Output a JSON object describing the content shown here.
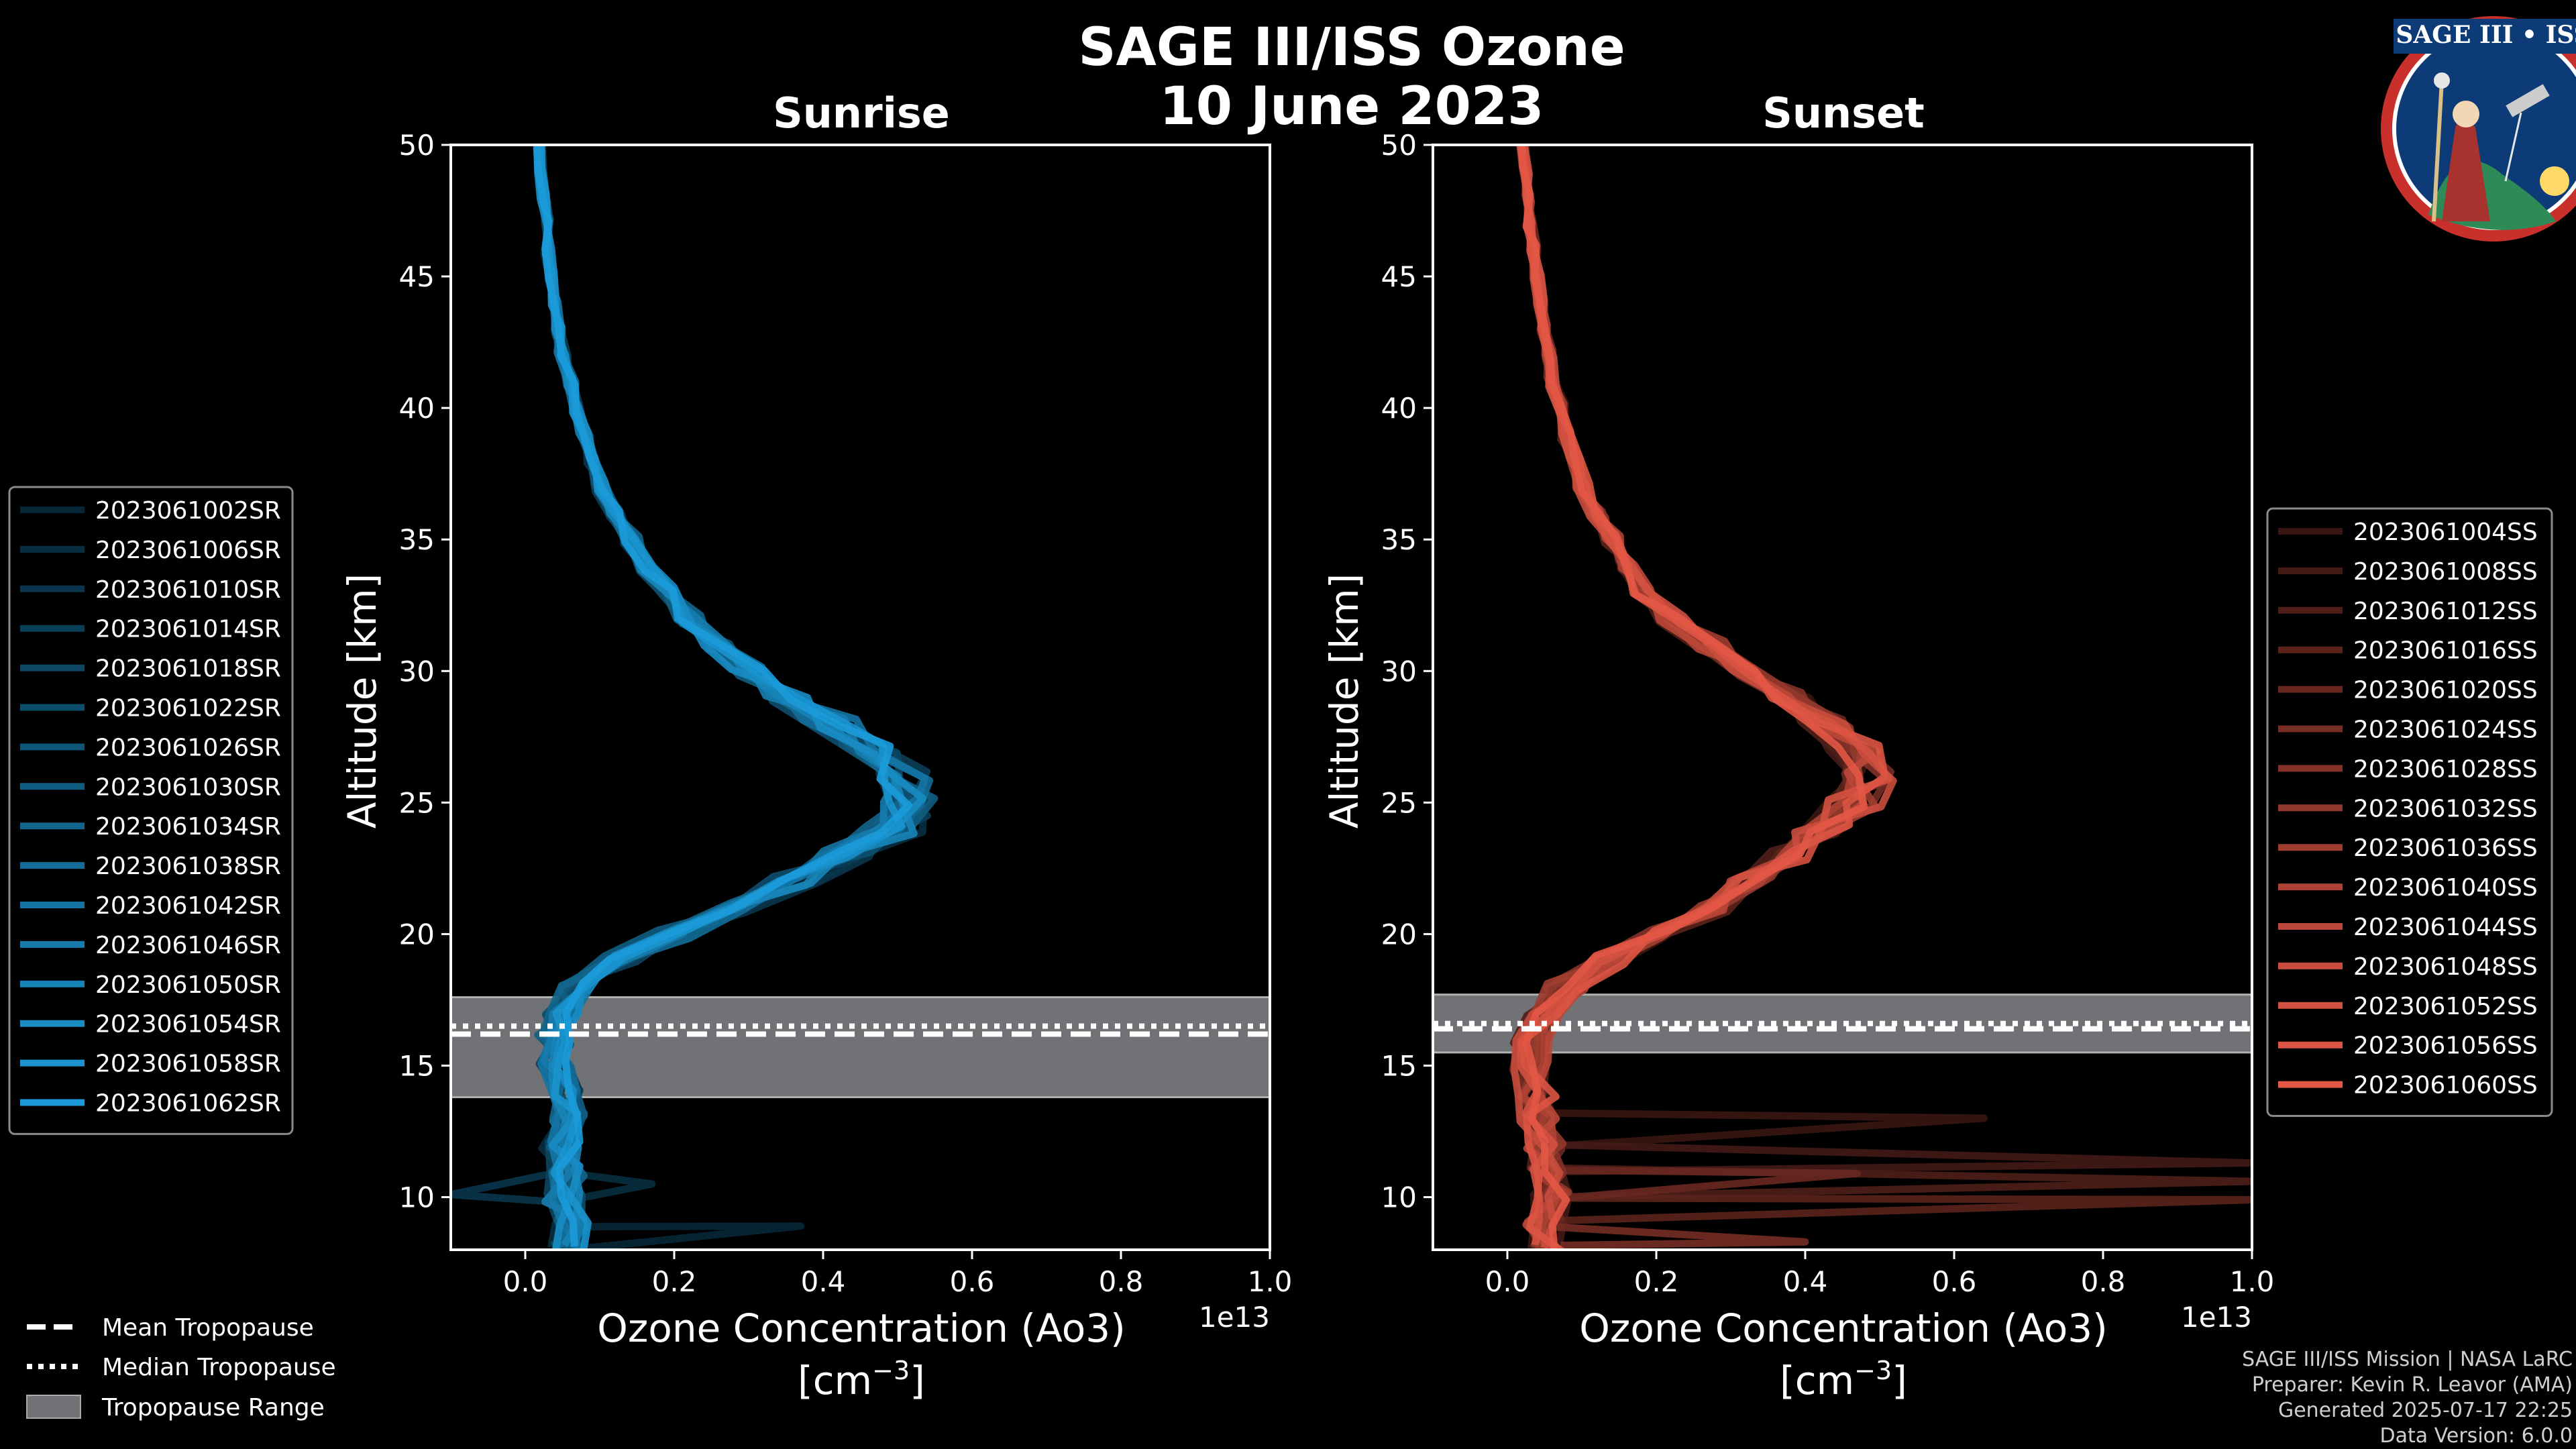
{
  "chart_data": [
    {
      "type": "line",
      "panel": "Sunrise",
      "title": "Sunrise",
      "xlabel": "Ozone Concentration (Ao3)",
      "xunit": "[cm",
      "xunit_sup": "−3",
      "xunit_close": "]",
      "ylabel": "Altitude [km]",
      "xlim": [
        -0.1,
        1.0
      ],
      "ylim": [
        8,
        50
      ],
      "x_scale_label": "1e13",
      "xticks": [
        "0.0",
        "0.2",
        "0.4",
        "0.6",
        "0.8",
        "1.0"
      ],
      "xtick_values": [
        0.0,
        0.2,
        0.4,
        0.6,
        0.8,
        1.0
      ],
      "yticks": [
        "10",
        "15",
        "20",
        "25",
        "30",
        "35",
        "40",
        "45",
        "50"
      ],
      "ytick_values": [
        10,
        15,
        20,
        25,
        30,
        35,
        40,
        45,
        50
      ],
      "tropopause": {
        "mean": 16.2,
        "median": 16.5,
        "range": [
          13.8,
          17.6
        ]
      },
      "base_profile": {
        "altitude": [
          8,
          9,
          10,
          11,
          12,
          13,
          14,
          15,
          16,
          17,
          18,
          19,
          20,
          21,
          22,
          23,
          24,
          25,
          26,
          27,
          28,
          29,
          30,
          31,
          32,
          33,
          34,
          35,
          36,
          37,
          38,
          39,
          40,
          41,
          42,
          43,
          44,
          45,
          46,
          47,
          48,
          49,
          50
        ],
        "ozone": [
          0.06,
          0.06,
          0.05,
          0.06,
          0.05,
          0.06,
          0.05,
          0.04,
          0.04,
          0.05,
          0.07,
          0.12,
          0.2,
          0.28,
          0.36,
          0.43,
          0.49,
          0.51,
          0.5,
          0.46,
          0.41,
          0.35,
          0.3,
          0.26,
          0.22,
          0.19,
          0.16,
          0.14,
          0.12,
          0.1,
          0.09,
          0.08,
          0.07,
          0.06,
          0.05,
          0.045,
          0.04,
          0.035,
          0.03,
          0.03,
          0.025,
          0.02,
          0.02
        ]
      },
      "spikes": [
        {
          "altitude": 8.9,
          "ozone": 0.37
        },
        {
          "altitude": 10.5,
          "ozone": 0.17
        },
        {
          "altitude": 10.1,
          "ozone": -0.1
        },
        {
          "altitude": 24.5,
          "ozone": 0.54
        }
      ],
      "color": "#1b9bd9",
      "series": [
        {
          "name": "2023061002SR",
          "shade": 0.25
        },
        {
          "name": "2023061006SR",
          "shade": 0.3
        },
        {
          "name": "2023061010SR",
          "shade": 0.35
        },
        {
          "name": "2023061014SR",
          "shade": 0.4
        },
        {
          "name": "2023061018SR",
          "shade": 0.45
        },
        {
          "name": "2023061022SR",
          "shade": 0.5
        },
        {
          "name": "2023061026SR",
          "shade": 0.55
        },
        {
          "name": "2023061030SR",
          "shade": 0.6
        },
        {
          "name": "2023061034SR",
          "shade": 0.65
        },
        {
          "name": "2023061038SR",
          "shade": 0.7
        },
        {
          "name": "2023061042SR",
          "shade": 0.75
        },
        {
          "name": "2023061046SR",
          "shade": 0.8
        },
        {
          "name": "2023061050SR",
          "shade": 0.85
        },
        {
          "name": "2023061054SR",
          "shade": 0.9
        },
        {
          "name": "2023061058SR",
          "shade": 0.95
        },
        {
          "name": "2023061062SR",
          "shade": 1.0
        }
      ]
    },
    {
      "type": "line",
      "panel": "Sunset",
      "title": "Sunset",
      "xlabel": "Ozone Concentration (Ao3)",
      "xunit": "[cm",
      "xunit_sup": "−3",
      "xunit_close": "]",
      "ylabel": "Altitude [km]",
      "xlim": [
        -0.1,
        1.0
      ],
      "ylim": [
        8,
        50
      ],
      "x_scale_label": "1e13",
      "xticks": [
        "0.0",
        "0.2",
        "0.4",
        "0.6",
        "0.8",
        "1.0"
      ],
      "xtick_values": [
        0.0,
        0.2,
        0.4,
        0.6,
        0.8,
        1.0
      ],
      "yticks": [
        "10",
        "15",
        "20",
        "25",
        "30",
        "35",
        "40",
        "45",
        "50"
      ],
      "ytick_values": [
        10,
        15,
        20,
        25,
        30,
        35,
        40,
        45,
        50
      ],
      "tropopause": {
        "mean": 16.4,
        "median": 16.6,
        "range": [
          15.5,
          17.7
        ]
      },
      "base_profile": {
        "altitude": [
          8,
          9,
          10,
          11,
          12,
          13,
          14,
          15,
          16,
          17,
          18,
          19,
          20,
          21,
          22,
          23,
          24,
          25,
          26,
          27,
          28,
          29,
          30,
          31,
          32,
          33,
          34,
          35,
          36,
          37,
          38,
          39,
          40,
          41,
          42,
          43,
          44,
          45,
          46,
          47,
          48,
          49,
          50
        ],
        "ozone": [
          0.06,
          0.05,
          0.06,
          0.05,
          0.05,
          0.04,
          0.04,
          0.03,
          0.03,
          0.05,
          0.08,
          0.13,
          0.2,
          0.27,
          0.33,
          0.38,
          0.42,
          0.46,
          0.48,
          0.47,
          0.43,
          0.38,
          0.32,
          0.27,
          0.22,
          0.18,
          0.16,
          0.14,
          0.12,
          0.1,
          0.09,
          0.08,
          0.07,
          0.06,
          0.055,
          0.05,
          0.045,
          0.04,
          0.035,
          0.03,
          0.028,
          0.025,
          0.02
        ]
      },
      "spikes": [
        {
          "altitude": 13.0,
          "ozone": 0.64
        },
        {
          "altitude": 11.3,
          "ozone": 1.0
        },
        {
          "altitude": 10.6,
          "ozone": 1.0
        },
        {
          "altitude": 9.9,
          "ozone": 1.0
        },
        {
          "altitude": 10.9,
          "ozone": 0.47
        },
        {
          "altitude": 8.3,
          "ozone": 0.4
        }
      ],
      "color": "#e35745",
      "series": [
        {
          "name": "2023061004SS",
          "shade": 0.25
        },
        {
          "name": "2023061008SS",
          "shade": 0.3
        },
        {
          "name": "2023061012SS",
          "shade": 0.35
        },
        {
          "name": "2023061016SS",
          "shade": 0.4
        },
        {
          "name": "2023061020SS",
          "shade": 0.46
        },
        {
          "name": "2023061024SS",
          "shade": 0.52
        },
        {
          "name": "2023061028SS",
          "shade": 0.58
        },
        {
          "name": "2023061032SS",
          "shade": 0.64
        },
        {
          "name": "2023061036SS",
          "shade": 0.7
        },
        {
          "name": "2023061040SS",
          "shade": 0.76
        },
        {
          "name": "2023061044SS",
          "shade": 0.82
        },
        {
          "name": "2023061048SS",
          "shade": 0.88
        },
        {
          "name": "2023061052SS",
          "shade": 0.93
        },
        {
          "name": "2023061056SS",
          "shade": 0.97
        },
        {
          "name": "2023061060SS",
          "shade": 1.0
        }
      ]
    }
  ],
  "header": {
    "title_line1": "SAGE III/ISS Ozone",
    "title_line2": "10 June 2023"
  },
  "logo": {
    "text": "SAGE III • ISS"
  },
  "tropopause_legend": [
    {
      "label": "Mean Tropopause",
      "style": "dashed"
    },
    {
      "label": "Median Tropopause",
      "style": "dotted"
    },
    {
      "label": "Tropopause Range",
      "style": "patch"
    }
  ],
  "footer": {
    "line1": "SAGE III/ISS Mission | NASA LaRC",
    "line2": "Preparer: Kevin R. Leavor (AMA)",
    "line3": "Generated 2025-07-17 22:25",
    "line4": "Data Version: 6.0.0"
  },
  "colors": {
    "background": "#000000",
    "sunrise": "#1b9bd9",
    "sunset": "#e35745",
    "tropopause_patch": "#707275"
  }
}
